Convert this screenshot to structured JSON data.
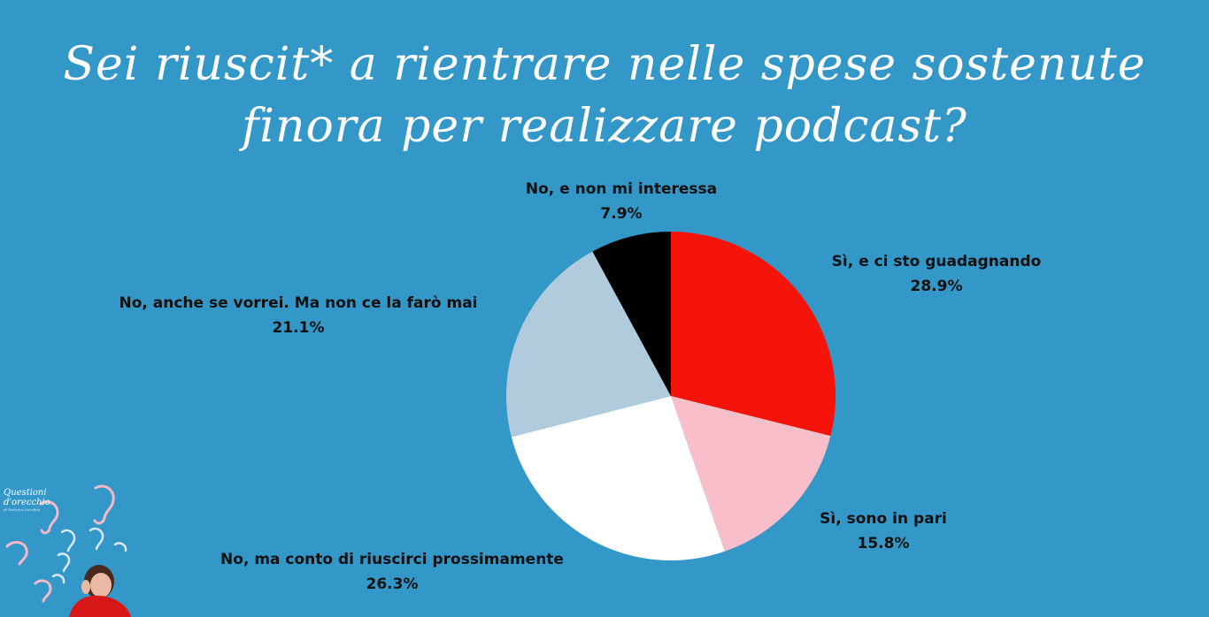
{
  "chart_data": {
    "type": "pie",
    "title": [
      "Sei riuscit* a rientrare nelle spese sostenute",
      "finora per realizzare podcast?"
    ],
    "slices": [
      {
        "label": "Sì, e ci sto guadagnando",
        "value": 28.9,
        "display": "28.9%",
        "color": "#f5130a"
      },
      {
        "label": "Sì, sono in pari",
        "value": 15.8,
        "display": "15.8%",
        "color": "#f8bfca"
      },
      {
        "label": "No, ma conto di riuscirci prossimamente",
        "value": 26.3,
        "display": "26.3%",
        "color": "#ffffff"
      },
      {
        "label": "No, anche se vorrei. Ma non ce la farò mai",
        "value": 21.1,
        "display": "21.1%",
        "color": "#afcbdc"
      },
      {
        "label": "No, e non mi interessa",
        "value": 7.9,
        "display": "7.9%",
        "color": "#000000"
      }
    ],
    "start_angle": "12 o'clock",
    "direction": "clockwise",
    "legend": "none"
  },
  "logo": {
    "title_line1": "Questioni",
    "title_line2": "d'orecchio",
    "subtitle": "di Federica Zecchini"
  }
}
